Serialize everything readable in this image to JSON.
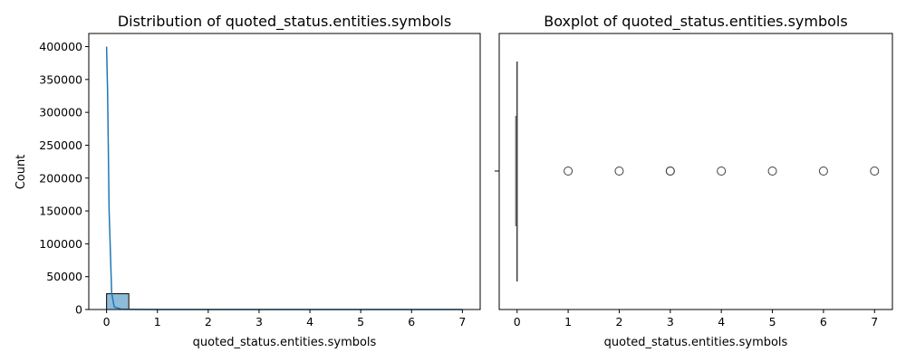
{
  "chart_data": [
    {
      "type": "histogram",
      "title": "Distribution of quoted_status.entities.symbols",
      "xlabel": "quoted_status.entities.symbols",
      "ylabel": "Count",
      "xlim": [
        -0.35,
        7.35
      ],
      "ylim": [
        0,
        420000
      ],
      "xticks": [
        0,
        1,
        2,
        3,
        4,
        5,
        6,
        7
      ],
      "yticks": [
        0,
        50000,
        100000,
        150000,
        200000,
        250000,
        300000,
        350000,
        400000
      ],
      "bin_width": 0.4375,
      "bins": [
        {
          "start": 0.0,
          "count": 24000
        },
        {
          "start": 0.4375,
          "count": 60
        },
        {
          "start": 0.875,
          "count": 40
        },
        {
          "start": 1.3125,
          "count": 30
        },
        {
          "start": 1.75,
          "count": 30
        },
        {
          "start": 2.1875,
          "count": 20
        },
        {
          "start": 2.625,
          "count": 20
        },
        {
          "start": 3.0625,
          "count": 15
        },
        {
          "start": 3.5,
          "count": 10
        },
        {
          "start": 3.9375,
          "count": 10
        },
        {
          "start": 4.375,
          "count": 8
        },
        {
          "start": 4.8125,
          "count": 6
        },
        {
          "start": 5.25,
          "count": 5
        },
        {
          "start": 5.6875,
          "count": 5
        },
        {
          "start": 6.125,
          "count": 4
        },
        {
          "start": 6.5625,
          "count": 3
        }
      ],
      "kde": {
        "x": [
          0,
          0.02,
          0.05,
          0.1,
          0.15,
          0.3,
          0.6,
          1,
          2,
          3,
          4,
          5,
          6,
          7
        ],
        "y": [
          400000,
          330000,
          150000,
          25000,
          4000,
          300,
          100,
          80,
          60,
          50,
          40,
          30,
          20,
          10
        ]
      },
      "bar_color": "#1f77b4",
      "grid": false
    },
    {
      "type": "boxplot",
      "title": "Boxplot of quoted_status.entities.symbols",
      "xlabel": "quoted_status.entities.symbols",
      "ylabel": "",
      "xlim": [
        -0.35,
        7.35
      ],
      "xticks": [
        0,
        1,
        2,
        3,
        4,
        5,
        6,
        7
      ],
      "stats": {
        "whislo": 0,
        "q1": 0,
        "median": 0,
        "q3": 0,
        "whishi": 0
      },
      "outliers": [
        1,
        2,
        3,
        3,
        4,
        5,
        6,
        7
      ],
      "box_color": "#1f77b4",
      "grid": false
    }
  ]
}
